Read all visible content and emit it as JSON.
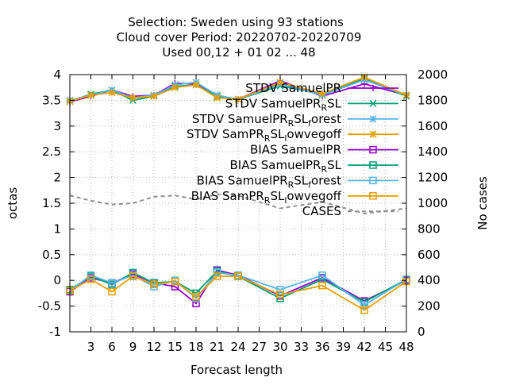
{
  "chart_data": {
    "type": "line",
    "title_lines": [
      "Selection: Sweden using    93 stations",
      "Cloud cover   Period: 20220702-20220709",
      "Used  00,12  + 01 02 ... 48"
    ],
    "xlabel": "Forecast length",
    "ylabel": "octas",
    "y2label": "No cases",
    "x": [
      0,
      3,
      6,
      9,
      12,
      15,
      18,
      21,
      24,
      30,
      36,
      42,
      48
    ],
    "xlim": [
      0,
      48
    ],
    "ylim": [
      -1,
      4
    ],
    "y2lim": [
      0,
      2000
    ],
    "x_ticks": [
      "3",
      "6",
      "9",
      "12",
      "15",
      "18",
      "21",
      "24",
      "27",
      "30",
      "33",
      "36",
      "39",
      "42",
      "45",
      "48"
    ],
    "y_ticks": [
      "-1",
      "-0.5",
      "0",
      "0.5",
      "1",
      "1.5",
      "2",
      "2.5",
      "3",
      "3.5",
      "4"
    ],
    "y2_ticks": [
      "0",
      "200",
      "400",
      "600",
      "800",
      "1000",
      "1200",
      "1400",
      "1600",
      "1800",
      "2000"
    ],
    "grid": true,
    "legend_position": "top-right",
    "series": [
      {
        "name": "STDV SamuelPR",
        "sub": "",
        "tail": "",
        "color": "#9400d3",
        "marker": "plus",
        "dash": false,
        "axis": "y",
        "values": [
          3.47,
          3.58,
          3.7,
          3.58,
          3.6,
          3.83,
          3.82,
          3.58,
          3.52,
          3.88,
          3.58,
          3.82,
          3.6
        ]
      },
      {
        "name": "STDV SamuelPR",
        "sub": "R",
        "tail": "SL",
        "color": "#009e73",
        "marker": "x",
        "dash": false,
        "axis": "y",
        "values": [
          3.48,
          3.62,
          3.7,
          3.5,
          3.58,
          3.77,
          3.8,
          3.58,
          3.52,
          3.78,
          3.62,
          3.92,
          3.58
        ]
      },
      {
        "name": "STDV SamuelPR",
        "sub": "R",
        "tail": "SL",
        "sub2": "f",
        "tail2": "orest",
        "color": "#56b4e9",
        "marker": "star",
        "dash": false,
        "axis": "y",
        "values": [
          3.5,
          3.6,
          3.7,
          3.55,
          3.6,
          3.8,
          3.85,
          3.6,
          3.52,
          3.82,
          3.6,
          3.9,
          3.6
        ]
      },
      {
        "name": "STDV SamPR",
        "sub": "R",
        "tail": "SL",
        "sub2": "l",
        "tail2": "owvegoff",
        "color": "#e69f00",
        "marker": "star",
        "dash": false,
        "axis": "y",
        "values": [
          3.48,
          3.6,
          3.65,
          3.55,
          3.58,
          3.75,
          3.8,
          3.55,
          3.52,
          3.85,
          3.63,
          3.95,
          3.6
        ]
      },
      {
        "name": "BIAS SamuelPR",
        "sub": "",
        "tail": "",
        "color": "#9400d3",
        "marker": "square",
        "dash": false,
        "axis": "y",
        "values": [
          -0.22,
          0.05,
          -0.05,
          0.12,
          -0.05,
          -0.12,
          -0.45,
          0.2,
          0.1,
          -0.3,
          0.05,
          -0.4,
          0.0
        ]
      },
      {
        "name": "BIAS SamuelPR",
        "sub": "R",
        "tail": "SL",
        "color": "#009e73",
        "marker": "square",
        "dash": false,
        "axis": "y",
        "values": [
          -0.18,
          0.08,
          -0.08,
          0.15,
          -0.05,
          -0.02,
          -0.25,
          0.18,
          0.08,
          -0.35,
          0.02,
          -0.42,
          0.02
        ]
      },
      {
        "name": "BIAS SamuelPR",
        "sub": "R",
        "tail": "SL",
        "sub2": "f",
        "tail2": "orest",
        "color": "#56b4e9",
        "marker": "square",
        "dash": false,
        "axis": "y",
        "values": [
          -0.2,
          0.1,
          -0.05,
          0.1,
          -0.12,
          0.0,
          -0.35,
          0.15,
          0.1,
          -0.18,
          0.1,
          -0.48,
          0.02
        ]
      },
      {
        "name": "BIAS SamPR",
        "sub": "R",
        "tail": "SL",
        "sub2": "l",
        "tail2": "owvegoff",
        "color": "#e69f00",
        "marker": "square",
        "dash": false,
        "axis": "y",
        "values": [
          -0.2,
          0.02,
          -0.22,
          0.08,
          -0.08,
          -0.02,
          -0.32,
          0.08,
          0.08,
          -0.28,
          -0.1,
          -0.58,
          -0.02
        ]
      },
      {
        "name": "CASES",
        "sub": "",
        "tail": "",
        "color": "#909090",
        "marker": "none",
        "dash": true,
        "axis": "y2",
        "values": [
          1060,
          1020,
          990,
          1000,
          1050,
          1060,
          1030,
          1070,
          1060,
          960,
          1010,
          920,
          960
        ]
      }
    ]
  }
}
